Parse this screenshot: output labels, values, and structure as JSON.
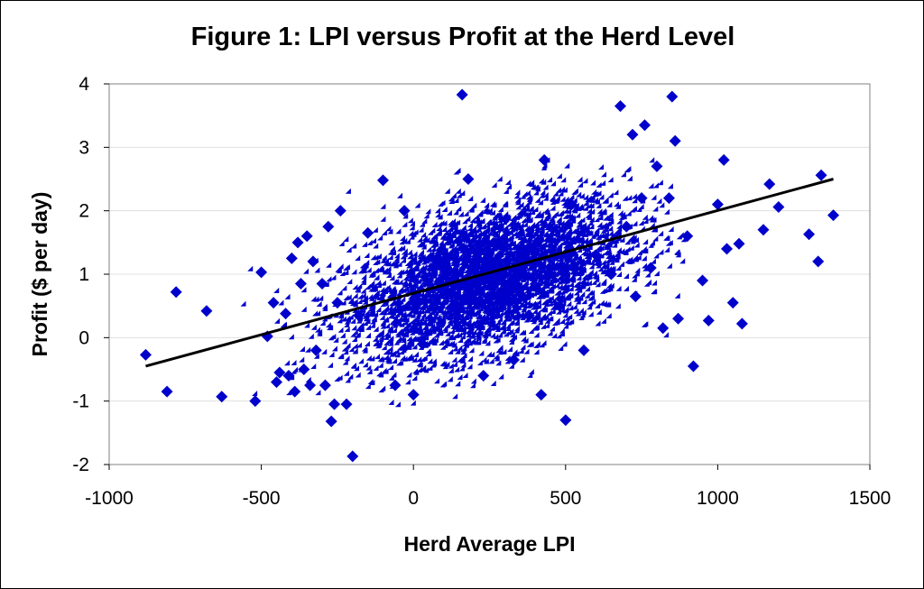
{
  "chart_data": {
    "type": "scatter",
    "title": "Figure 1: LPI versus Profit at the Herd Level",
    "xlabel": "Herd Average LPI",
    "ylabel": "Profit ($ per day)",
    "xlim": [
      -1000,
      1500
    ],
    "ylim": [
      -2,
      4
    ],
    "xticks": [
      -1000,
      -500,
      0,
      500,
      1000,
      1500
    ],
    "yticks": [
      -2,
      -1,
      0,
      1,
      2,
      3,
      4
    ],
    "grid": {
      "x": false,
      "y": true
    },
    "legend": "none",
    "marker": {
      "shape": "diamond",
      "color": "#0000CC"
    },
    "trendline": {
      "color": "#000000",
      "x": [
        -880,
        1380
      ],
      "y": [
        -0.45,
        2.5
      ]
    },
    "points": {
      "x": [
        -880,
        -810,
        -780,
        -680,
        -630,
        -520,
        -500,
        -480,
        -460,
        -450,
        -440,
        -420,
        -410,
        -400,
        -390,
        -380,
        -370,
        -360,
        -350,
        -340,
        -330,
        -320,
        -300,
        -290,
        -280,
        -270,
        -260,
        -250,
        -240,
        -220,
        -200,
        -180,
        -150,
        -100,
        -60,
        -30,
        0,
        30,
        80,
        130,
        160,
        180,
        230,
        280,
        330,
        380,
        420,
        430,
        480,
        500,
        520,
        560,
        600,
        650,
        680,
        700,
        720,
        730,
        750,
        760,
        780,
        800,
        820,
        840,
        850,
        860,
        870,
        900,
        920,
        950,
        970,
        1000,
        1020,
        1030,
        1050,
        1070,
        1080,
        1150,
        1170,
        1200,
        1300,
        1330,
        1340,
        1380
      ],
      "y": [
        -0.27,
        -0.85,
        0.72,
        0.42,
        -0.93,
        -1.0,
        1.03,
        0.02,
        0.55,
        -0.7,
        -0.55,
        0.38,
        -0.6,
        1.25,
        -0.85,
        1.5,
        0.85,
        -0.5,
        1.6,
        -0.75,
        1.2,
        -0.2,
        0.85,
        -0.75,
        1.75,
        -1.32,
        -1.05,
        0.55,
        2.0,
        -1.05,
        -1.87,
        0.35,
        1.65,
        2.48,
        -0.75,
        2.0,
        -0.9,
        -0.1,
        1.25,
        0.5,
        3.83,
        2.5,
        -0.6,
        1.5,
        -0.35,
        0.35,
        -0.9,
        2.8,
        0.5,
        -1.3,
        2.1,
        -0.2,
        1.3,
        1.0,
        3.65,
        1.75,
        3.2,
        0.65,
        2.2,
        3.35,
        1.1,
        2.7,
        0.15,
        2.2,
        3.8,
        3.1,
        0.3,
        1.6,
        -0.45,
        0.9,
        0.27,
        2.1,
        2.8,
        1.4,
        0.55,
        1.48,
        0.22,
        1.7,
        2.42,
        2.06,
        1.63,
        1.2,
        2.56,
        1.93
      ]
    },
    "cloud": {
      "count": 4200,
      "center_x": 250,
      "sd_x": 230,
      "center_y": 0.9,
      "sd_y": 0.55,
      "slope": 0.0013
    }
  }
}
